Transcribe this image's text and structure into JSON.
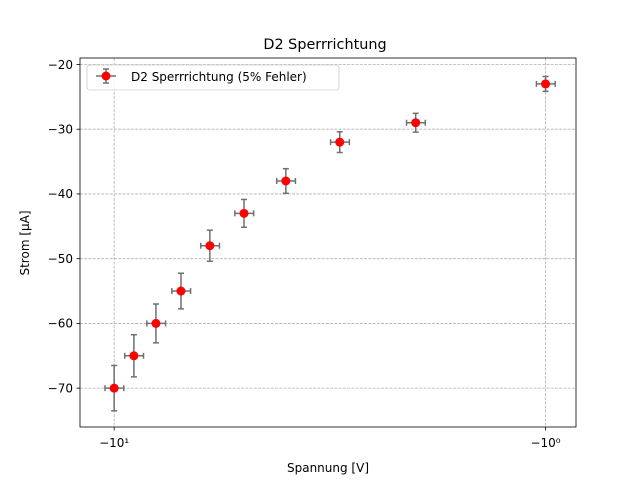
{
  "chart_data": {
    "type": "scatter",
    "title": "D2 Sperrrichtung",
    "xlabel": "Spannung [V]",
    "ylabel": "Strom [μA]",
    "x_scale": "symlog",
    "xlim": [
      -12,
      -0.85
    ],
    "ylim": [
      -76,
      -19
    ],
    "x_ticks": [
      {
        "value": -10,
        "label": "−10¹"
      },
      {
        "value": -1,
        "label": "−10⁰"
      }
    ],
    "y_ticks": [
      -70,
      -60,
      -50,
      -40,
      -30,
      -20
    ],
    "y_tick_labels": [
      "−70",
      "−60",
      "−50",
      "−40",
      "−30",
      "−20"
    ],
    "grid": true,
    "legend_position": "top-left",
    "series": [
      {
        "name": "D2 Sperrrichtung (5% Fehler)",
        "color": "#ff0000",
        "errorbar_color": "#707070",
        "x": [
          -10,
          -9,
          -8,
          -7,
          -6,
          -5,
          -4,
          -3,
          -2,
          -1
        ],
        "y": [
          -70,
          -65,
          -60,
          -55,
          -48,
          -43,
          -38,
          -32,
          -29,
          -23
        ],
        "xerr": [
          0.5,
          0.45,
          0.4,
          0.35,
          0.3,
          0.25,
          0.2,
          0.15,
          0.1,
          0.05
        ],
        "yerr": [
          3.5,
          3.25,
          3.0,
          2.75,
          2.4,
          2.15,
          1.9,
          1.6,
          1.45,
          1.15
        ]
      }
    ]
  }
}
